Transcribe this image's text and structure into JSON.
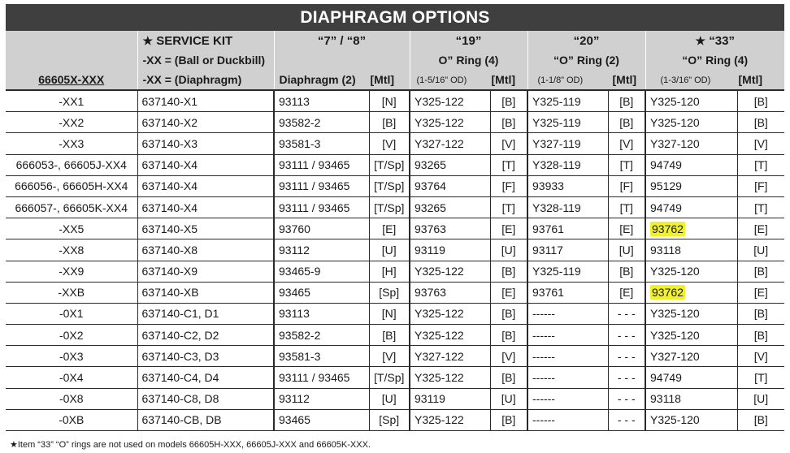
{
  "title": "DIAPHRAGM OPTIONS",
  "header": {
    "model_label": "66605X-XXX",
    "service_kit": {
      "star": "★",
      "line1": "SERVICE KIT",
      "line2": "-XX = (Ball or Duckbill)",
      "line3": "-XX = (Diaphragm)"
    },
    "col7_8": {
      "line1": "“7” / “8”",
      "diaphragm": "Diaphragm (2)",
      "mtl": "[Mtl]"
    },
    "col19": {
      "line1": "“19”",
      "line2": "O” Ring (4)",
      "size": "(1-5/16” OD)",
      "mtl": "[Mtl]"
    },
    "col20": {
      "line1": "“20”",
      "line2": "“O” Ring (2)",
      "size": "(1-1/8” OD)",
      "mtl": "[Mtl]"
    },
    "col33": {
      "star": "★",
      "line1": "“33”",
      "line2": "“O” Ring (4)",
      "size": "(1-3/16” OD)",
      "mtl": "[Mtl]"
    }
  },
  "rows": [
    [
      "-XX1",
      "637140-X1",
      "93113",
      "[N]",
      "Y325-122",
      "[B]",
      "Y325-119",
      "[B]",
      "Y325-120",
      "[B]"
    ],
    [
      "-XX2",
      "637140-X2",
      "93582-2",
      "[B]",
      "Y325-122",
      "[B]",
      "Y325-119",
      "[B]",
      "Y325-120",
      "[B]"
    ],
    [
      "-XX3",
      "637140-X3",
      "93581-3",
      "[V]",
      "Y327-122",
      "[V]",
      "Y327-119",
      "[V]",
      "Y327-120",
      "[V]"
    ],
    [
      "666053-, 66605J-XX4",
      "637140-X4",
      "93111 / 93465",
      "[T/Sp]",
      "93265",
      "[T]",
      "Y328-119",
      "[T]",
      "94749",
      "[T]"
    ],
    [
      "666056-, 66605H-XX4",
      "637140-X4",
      "93111 / 93465",
      "[T/Sp]",
      "93764",
      "[F]",
      "93933",
      "[F]",
      "95129",
      "[F]"
    ],
    [
      "666057-, 66605K-XX4",
      "637140-X4",
      "93111 / 93465",
      "[T/Sp]",
      "93265",
      "[T]",
      "Y328-119",
      "[T]",
      "94749",
      "[T]"
    ],
    [
      "-XX5",
      "637140-X5",
      "93760",
      "[E]",
      "93763",
      "[E]",
      "93761",
      "[E]",
      "93762",
      "[E]"
    ],
    [
      "-XX8",
      "637140-X8",
      "93112",
      "[U]",
      "93119",
      "[U]",
      "93117",
      "[U]",
      "93118",
      "[U]"
    ],
    [
      "-XX9",
      "637140-X9",
      "93465-9",
      "[H]",
      "Y325-122",
      "[B]",
      "Y325-119",
      "[B]",
      "Y325-120",
      "[B]"
    ],
    [
      "-XXB",
      "637140-XB",
      "93465",
      "[Sp]",
      "93763",
      "[E]",
      "93761",
      "[E]",
      "93762",
      "[E]"
    ],
    [
      "-0X1",
      "637140-C1, D1",
      "93113",
      "[N]",
      "Y325-122",
      "[B]",
      "------",
      "- - -",
      "Y325-120",
      "[B]"
    ],
    [
      "-0X2",
      "637140-C2, D2",
      "93582-2",
      "[B]",
      "Y325-122",
      "[B]",
      "------",
      "- - -",
      "Y325-120",
      "[B]"
    ],
    [
      "-0X3",
      "637140-C3, D3",
      "93581-3",
      "[V]",
      "Y327-122",
      "[V]",
      "------",
      "- - -",
      "Y327-120",
      "[V]"
    ],
    [
      "-0X4",
      "637140-C4, D4",
      "93111 / 93465",
      "[T/Sp]",
      "Y325-122",
      "[B]",
      "------",
      "- - -",
      "94749",
      "[T]"
    ],
    [
      "-0X8",
      "637140-C8, D8",
      "93112",
      "[U]",
      "93119",
      "[U]",
      "------",
      "- - -",
      "93118",
      "[U]"
    ],
    [
      "-0XB",
      "637140-CB, DB",
      "93465",
      "[Sp]",
      "Y325-122",
      "[B]",
      "------",
      "- - -",
      "Y325-120",
      "[B]"
    ]
  ],
  "highlight_color": "#f1f12a",
  "highlighted_rows": [
    6,
    9
  ],
  "footnote": "★Item “33” “O” rings are not used on models 66605H-XXX, 66605J-XXX and 66605K-XXX."
}
